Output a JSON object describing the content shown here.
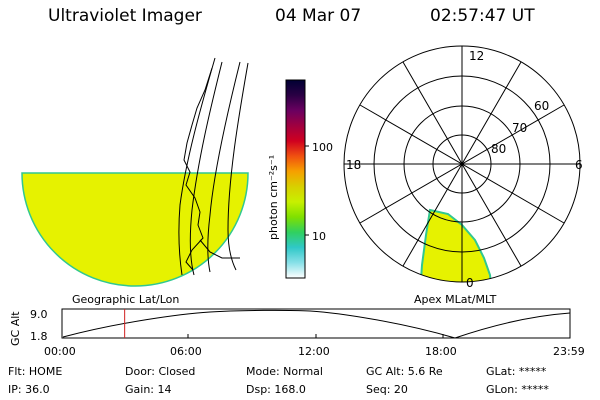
{
  "header": {
    "title": "Ultraviolet Imager",
    "date": "04 Mar 07",
    "time": "02:57:47 UT"
  },
  "geo_panel": {
    "label": "Geographic Lat/Lon"
  },
  "colorbar": {
    "unit": "photon cm⁻²s⁻¹",
    "ticks": [
      "100",
      "10"
    ],
    "colors": [
      "#000033",
      "#2a0044",
      "#6a0060",
      "#a00040",
      "#d00020",
      "#f05010",
      "#f6a000",
      "#d8d000",
      "#c8f000",
      "#80e000",
      "#30d060",
      "#30c8c8",
      "#88e0e8",
      "#ffffff"
    ]
  },
  "polar_panel": {
    "label": "Apex MLat/MLT",
    "mlt_labels": {
      "top": "12",
      "left": "18",
      "right": "6",
      "bottom": "0"
    },
    "lat_labels": [
      "60",
      "70",
      "80"
    ]
  },
  "altitude_plot": {
    "axis_label": "GC Alt",
    "ticks": [
      "9.0",
      "1.8"
    ],
    "time_ticks": [
      "00:00",
      "06:00",
      "12:00",
      "18:00",
      "23:59"
    ],
    "current_time_hours": 2.96
  },
  "status": {
    "row1": [
      "Flt: HOME",
      "Door: Closed",
      "Mode: Normal",
      "GC Alt: 5.6 Re",
      "GLat: *****"
    ],
    "row2": [
      "IP: 36.0",
      "Gain: 14",
      "Dsp: 168.0",
      "Seq: 20",
      "GLon: *****"
    ]
  },
  "colors": {
    "fill": "#e6f200",
    "edge": "#30c890",
    "time_marker": "#d02020"
  }
}
